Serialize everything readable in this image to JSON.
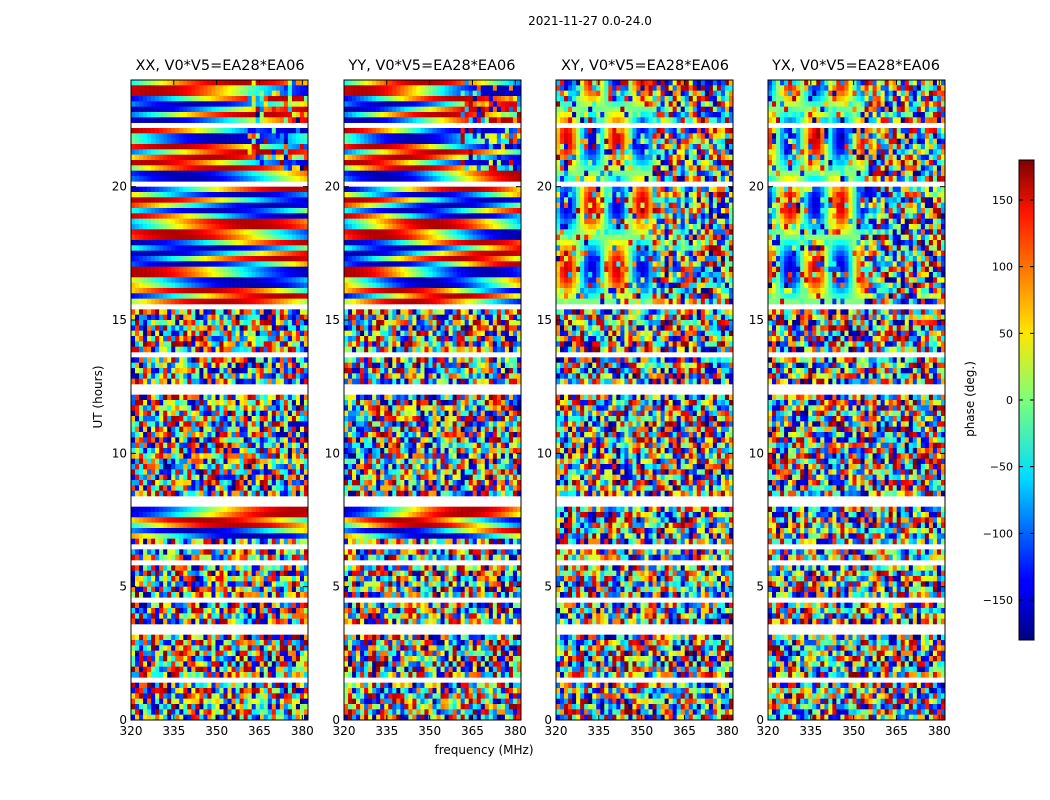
{
  "chart_data": {
    "type": "heatmap",
    "suptitle": "2021-11-27 0.0-24.0",
    "xlabel": "frequency (MHz)",
    "ylabel": "UT (hours)",
    "colorbar_label": "phase (deg.)",
    "colormap": "jet",
    "xlim": [
      320,
      382
    ],
    "ylim": [
      0,
      24
    ],
    "xticks": [
      "320",
      "335",
      "350",
      "365",
      "380"
    ],
    "yticks": [
      "0",
      "5",
      "10",
      "15",
      "20"
    ],
    "colorbar_range": [
      -180,
      180
    ],
    "colorbar_ticks": [
      "150",
      "100",
      "50",
      "0",
      "−50",
      "−100",
      "−150"
    ],
    "panels": [
      {
        "title": "XX, V0*V5=EA28*EA06",
        "pol": "XX"
      },
      {
        "title": "YY, V0*V5=EA28*EA06",
        "pol": "YY"
      },
      {
        "title": "XY, V0*V5=EA28*EA06",
        "pol": "XY"
      },
      {
        "title": "YX, V0*V5=EA28*EA06",
        "pol": "YX"
      }
    ]
  }
}
